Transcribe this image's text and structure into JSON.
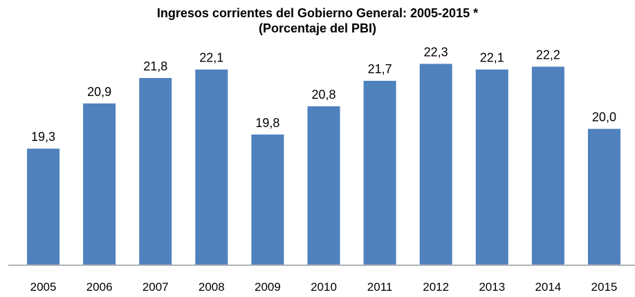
{
  "chart_data": {
    "type": "bar",
    "title": "Ingresos corrientes del Gobierno General: 2005-2015 *",
    "subtitle": "(Porcentaje del PBI)",
    "xlabel": "",
    "ylabel": "",
    "categories": [
      "2005",
      "2006",
      "2007",
      "2008",
      "2009",
      "2010",
      "2011",
      "2012",
      "2013",
      "2014",
      "2015"
    ],
    "values": [
      19.3,
      20.9,
      21.8,
      22.1,
      19.8,
      20.8,
      21.7,
      22.3,
      22.1,
      22.2,
      20.0
    ],
    "data_labels": [
      "19,3",
      "20,9",
      "21,8",
      "22,1",
      "19,8",
      "20,8",
      "21,7",
      "22,3",
      "22,1",
      "22,2",
      "20,0"
    ],
    "ylim": [
      15.2,
      22.8
    ],
    "grid": false,
    "legend": "none",
    "bar_color": "#4f81bd"
  }
}
